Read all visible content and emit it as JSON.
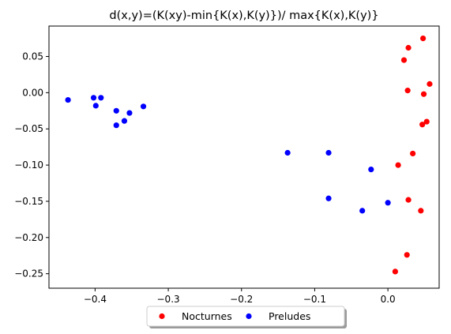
{
  "chart_data": {
    "type": "scatter",
    "title": "d(x,y)=(K(xy)-min{K(x),K(y)})/ max{K(x),K(y)}",
    "xlabel": "",
    "ylabel": "",
    "xlim": [
      -0.463,
      0.07
    ],
    "ylim": [
      -0.27,
      0.092
    ],
    "xticks": [
      -0.4,
      -0.3,
      -0.2,
      -0.1,
      0.0
    ],
    "xtick_labels": [
      "−0.4",
      "−0.3",
      "−0.2",
      "−0.1",
      "0.0"
    ],
    "yticks": [
      0.05,
      0.0,
      -0.05,
      -0.1,
      -0.15,
      -0.2,
      -0.25
    ],
    "ytick_labels": [
      "0.05",
      "0.00",
      "−0.05",
      "−0.10",
      "−0.15",
      "−0.20",
      "−0.25"
    ],
    "grid": false,
    "legend_position": "bottom-center, below axes",
    "series": [
      {
        "name": "Nocturnes",
        "color": "#ff0000",
        "points": [
          [
            0.048,
            0.075
          ],
          [
            0.028,
            0.062
          ],
          [
            0.022,
            0.045
          ],
          [
            0.057,
            0.012
          ],
          [
            0.027,
            0.003
          ],
          [
            0.049,
            -0.002
          ],
          [
            0.053,
            -0.04
          ],
          [
            0.047,
            -0.044
          ],
          [
            0.034,
            -0.084
          ],
          [
            0.014,
            -0.1
          ],
          [
            0.028,
            -0.148
          ],
          [
            0.045,
            -0.163
          ],
          [
            0.026,
            -0.224
          ],
          [
            0.01,
            -0.247
          ]
        ]
      },
      {
        "name": "Preludes",
        "color": "#0000ff",
        "points": [
          [
            -0.437,
            -0.01
          ],
          [
            -0.402,
            -0.007
          ],
          [
            -0.392,
            -0.007
          ],
          [
            -0.399,
            -0.018
          ],
          [
            -0.334,
            -0.019
          ],
          [
            -0.371,
            -0.025
          ],
          [
            -0.353,
            -0.028
          ],
          [
            -0.36,
            -0.039
          ],
          [
            -0.371,
            -0.045
          ],
          [
            -0.137,
            -0.083
          ],
          [
            -0.081,
            -0.083
          ],
          [
            -0.023,
            -0.106
          ],
          [
            -0.081,
            -0.146
          ],
          [
            -0.035,
            -0.163
          ],
          [
            0.0,
            -0.152
          ]
        ]
      }
    ]
  }
}
